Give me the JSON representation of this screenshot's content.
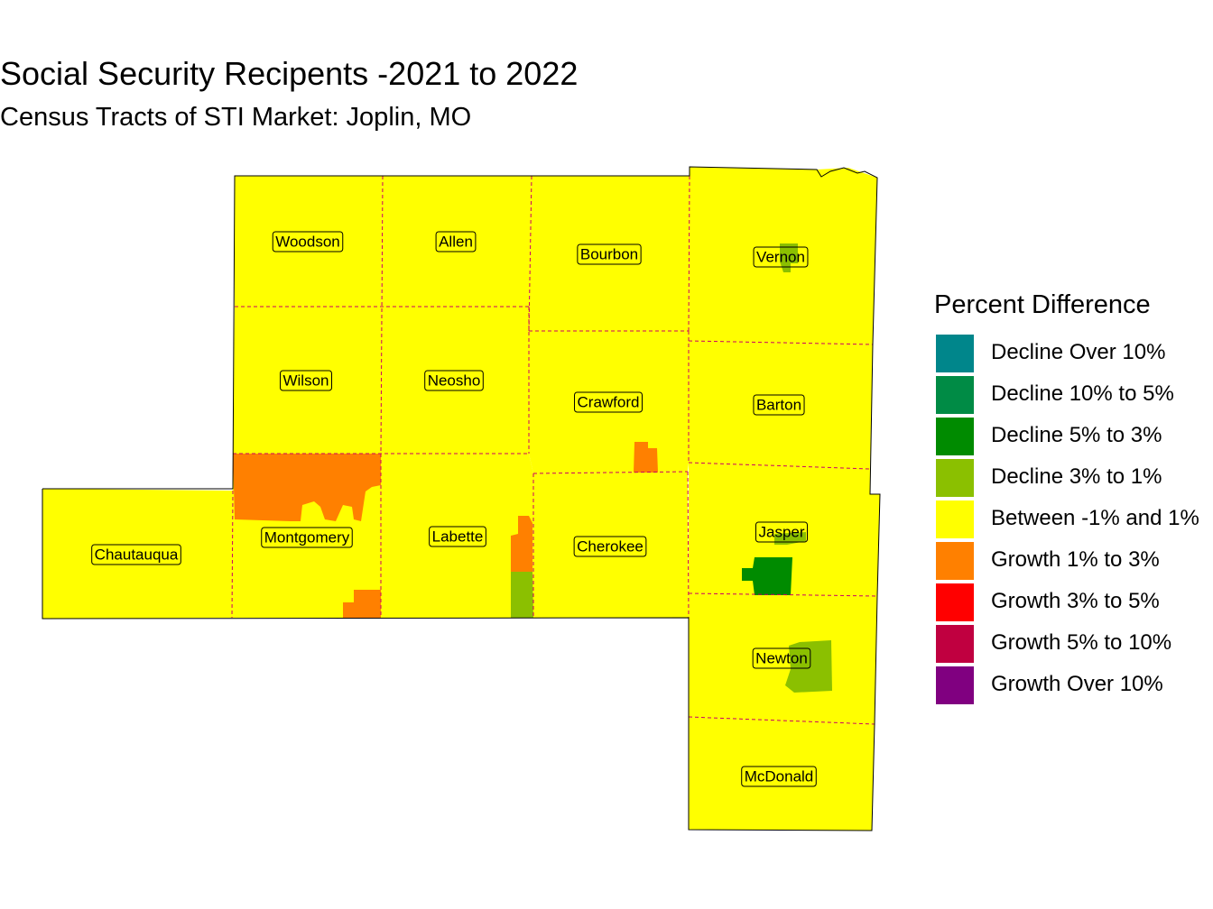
{
  "title": "Social Security Recipents -2021 to 2022",
  "subtitle": "Census Tracts of STI Market: Joplin, MO",
  "map": {
    "counties": [
      {
        "id": "woodson",
        "name": "Woodson",
        "category": "between"
      },
      {
        "id": "allen",
        "name": "Allen",
        "category": "between"
      },
      {
        "id": "bourbon",
        "name": "Bourbon",
        "category": "between"
      },
      {
        "id": "vernon",
        "name": "Vernon",
        "category": "between"
      },
      {
        "id": "wilson",
        "name": "Wilson",
        "category": "between"
      },
      {
        "id": "neosho",
        "name": "Neosho",
        "category": "between"
      },
      {
        "id": "crawford",
        "name": "Crawford",
        "category": "between"
      },
      {
        "id": "barton",
        "name": "Barton",
        "category": "between"
      },
      {
        "id": "chautauqua",
        "name": "Chautauqua",
        "category": "between"
      },
      {
        "id": "montgomery",
        "name": "Montgomery",
        "category": "between"
      },
      {
        "id": "labette",
        "name": "Labette",
        "category": "between"
      },
      {
        "id": "cherokee",
        "name": "Cherokee",
        "category": "between"
      },
      {
        "id": "jasper",
        "name": "Jasper",
        "category": "between"
      },
      {
        "id": "newton",
        "name": "Newton",
        "category": "between"
      },
      {
        "id": "mcdonald",
        "name": "McDonald",
        "category": "between"
      }
    ],
    "tracts": [
      {
        "county": "Vernon",
        "category": "decline_3_1"
      },
      {
        "county": "Crawford",
        "category": "growth_1_3"
      },
      {
        "county": "Montgomery",
        "category": "growth_1_3"
      },
      {
        "county": "Montgomery",
        "category": "growth_1_3"
      },
      {
        "county": "Labette",
        "category": "growth_1_3"
      },
      {
        "county": "Labette",
        "category": "decline_3_1"
      },
      {
        "county": "Jasper",
        "category": "decline_5_3"
      },
      {
        "county": "Jasper",
        "category": "decline_3_1"
      },
      {
        "county": "Newton",
        "category": "decline_3_1"
      }
    ],
    "county_border_color": "#cc0066"
  },
  "legend": {
    "title": "Percent Difference",
    "items": [
      {
        "key": "decline_over_10",
        "label": "Decline Over 10%",
        "color": "#00868B"
      },
      {
        "key": "decline_10_5",
        "label": "Decline 10% to 5%",
        "color": "#008B45"
      },
      {
        "key": "decline_5_3",
        "label": "Decline 5% to 3%",
        "color": "#008B00"
      },
      {
        "key": "decline_3_1",
        "label": "Decline 3% to 1%",
        "color": "#8BC000"
      },
      {
        "key": "between",
        "label": "Between -1% and 1%",
        "color": "#FFFF00"
      },
      {
        "key": "growth_1_3",
        "label": "Growth 1% to 3%",
        "color": "#FF8000"
      },
      {
        "key": "growth_3_5",
        "label": "Growth 3% to 5%",
        "color": "#FF0000"
      },
      {
        "key": "growth_5_10",
        "label": "Growth 5% to 10%",
        "color": "#C00040"
      },
      {
        "key": "growth_over_10",
        "label": "Growth Over 10%",
        "color": "#800080"
      }
    ]
  }
}
